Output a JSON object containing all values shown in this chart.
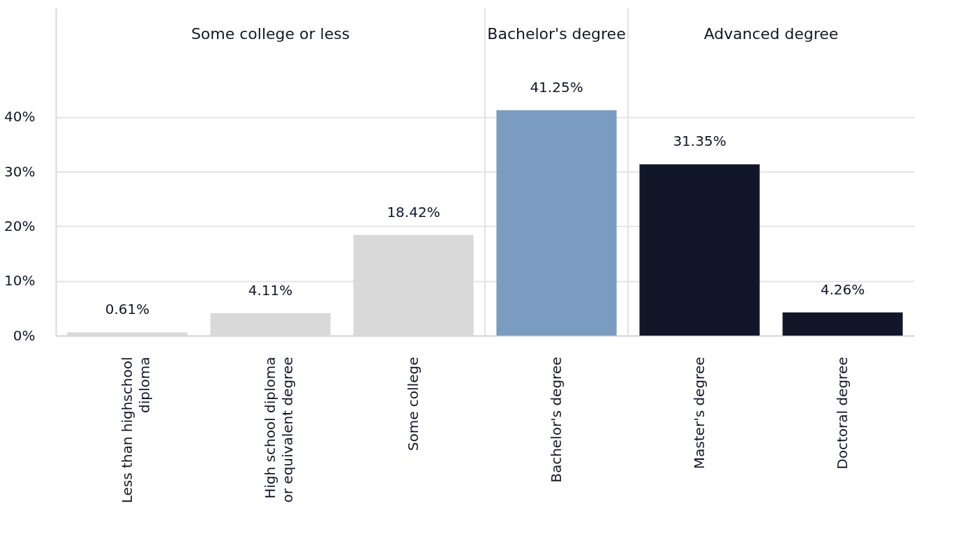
{
  "chart_data": {
    "type": "bar",
    "categories": [
      "Less than highschool diploma",
      "High school diploma or equivalent degree",
      "Some college",
      "Bachelor's degree",
      "Master's degree",
      "Doctoral degree"
    ],
    "values": [
      0.61,
      4.11,
      18.42,
      41.25,
      31.35,
      4.26
    ],
    "colors": [
      "#d9d9d9",
      "#d9d9d9",
      "#d9d9d9",
      "#7a9cc0",
      "#111628",
      "#111628"
    ],
    "value_labels": [
      "0.61%",
      "4.11%",
      "18.42%",
      "41.25%",
      "31.35%",
      "4.26%"
    ],
    "ylim": [
      0,
      60
    ],
    "yticks": [
      {
        "value": 0,
        "label": "0%"
      },
      {
        "value": 10,
        "label": "10%"
      },
      {
        "value": 20,
        "label": "20%"
      },
      {
        "value": 30,
        "label": "30%"
      },
      {
        "value": 40,
        "label": "40%"
      }
    ],
    "grid": "y",
    "annotations": [
      "Some college or less",
      "Bachelor's degree",
      "Advanced degree"
    ]
  }
}
